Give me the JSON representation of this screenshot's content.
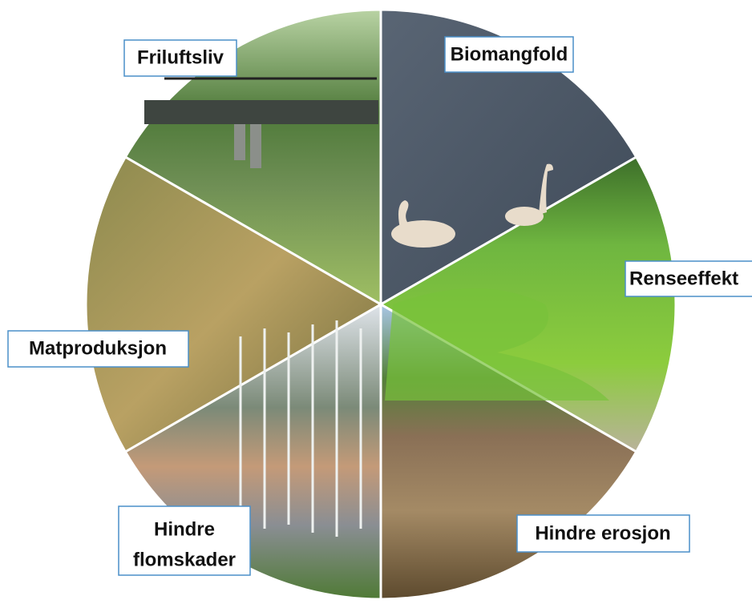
{
  "segments": [
    {
      "lines": [
        "Friluftsliv"
      ]
    },
    {
      "lines": [
        "Biomangfold"
      ]
    },
    {
      "lines": [
        "Renseeffekt"
      ]
    },
    {
      "lines": [
        "Hindre erosjon"
      ]
    },
    {
      "lines": [
        "Hindre",
        "flomskader"
      ]
    },
    {
      "lines": [
        "Matproduksjon"
      ]
    }
  ]
}
